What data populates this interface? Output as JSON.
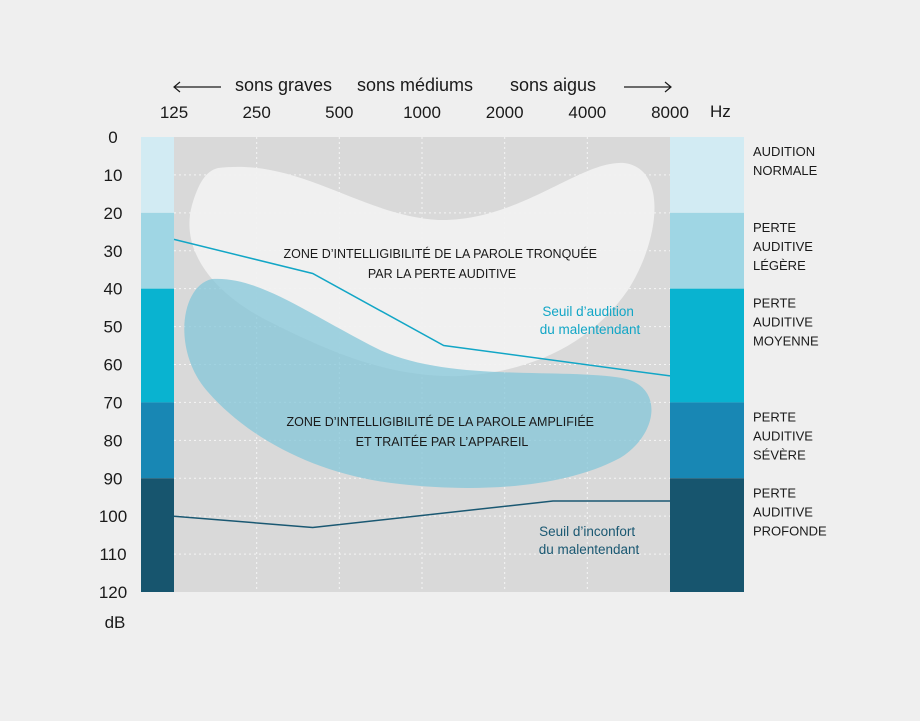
{
  "chart_data": {
    "type": "line",
    "title": "",
    "header": {
      "graves": "sons graves",
      "mediums": "sons médiums",
      "aigus": "sons aigus"
    },
    "x_unit": "Hz",
    "y_unit": "dB",
    "x_categories": [
      "125",
      "250",
      "500",
      "1000",
      "2000",
      "4000",
      "8000"
    ],
    "y_ticks": [
      0,
      10,
      20,
      30,
      40,
      50,
      60,
      70,
      80,
      90,
      100,
      110,
      120
    ],
    "ylim": [
      0,
      120
    ],
    "grid": true,
    "bands": [
      {
        "range": [
          0,
          20
        ],
        "color": "#d2ebf3",
        "label": [
          "AUDITION",
          "NORMALE"
        ]
      },
      {
        "range": [
          20,
          40
        ],
        "color": "#9fd6e4",
        "label": [
          "PERTE",
          "AUDITIVE",
          "LÉGÈRE"
        ]
      },
      {
        "range": [
          40,
          70
        ],
        "color": "#09b3d0",
        "label": [
          "PERTE",
          "AUDITIVE",
          "MOYENNE"
        ]
      },
      {
        "range": [
          70,
          90
        ],
        "color": "#1887b4",
        "label": [
          "PERTE",
          "AUDITIVE",
          "SÉVÈRE"
        ]
      },
      {
        "range": [
          90,
          120
        ],
        "color": "#17556e",
        "label": [
          "PERTE",
          "AUDITIVE",
          "PROFONDE"
        ]
      }
    ],
    "series": [
      {
        "name": "Seuil d’audition du malentendant",
        "label_lines": [
          "Seuil d’audition",
          "du malentendant"
        ],
        "color": "#12a6c6",
        "points": [
          [
            125,
            27
          ],
          [
            400,
            36
          ],
          [
            1200,
            55
          ],
          [
            8000,
            63
          ]
        ]
      },
      {
        "name": "Seuil d’inconfort du malentendant",
        "label_lines": [
          "Seuil d’inconfort",
          "du malentendant"
        ],
        "color": "#1a5872",
        "points": [
          [
            125,
            100
          ],
          [
            400,
            103
          ],
          [
            3000,
            96
          ],
          [
            8000,
            96
          ]
        ]
      }
    ],
    "zones": [
      {
        "name": "tronquee",
        "label_lines": [
          "ZONE D’INTELLIGIBILITÉ DE LA PAROLE TRONQUÉE",
          "PAR LA PERTE AUDITIVE"
        ],
        "color": "#f2f2f2"
      },
      {
        "name": "amplifiee",
        "label_lines": [
          "ZONE D’INTELLIGIBILITÉ DE LA PAROLE AMPLIFIÉE",
          "ET TRAITÉE PAR L’APPAREIL"
        ],
        "color": "#7fc5d8"
      }
    ]
  }
}
